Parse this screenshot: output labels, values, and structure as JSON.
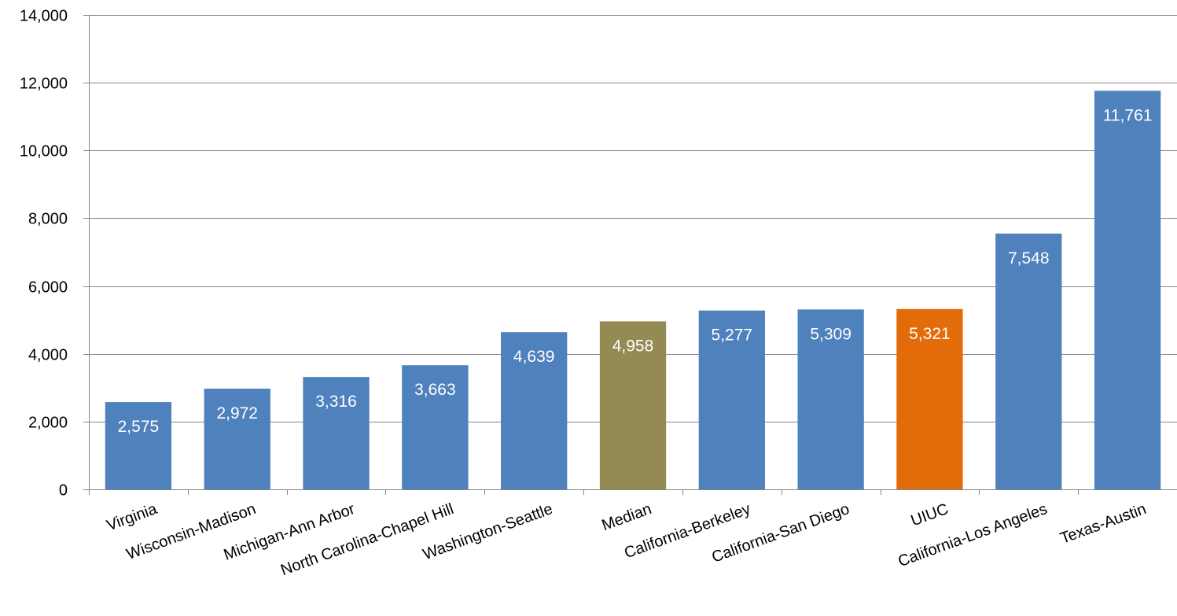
{
  "chart_data": {
    "type": "bar",
    "title": "",
    "xlabel": "",
    "ylabel": "",
    "ylim": [
      0,
      14000
    ],
    "yticks": [
      0,
      2000,
      4000,
      6000,
      8000,
      10000,
      12000,
      14000
    ],
    "ytick_labels": [
      "0",
      "2,000",
      "4,000",
      "6,000",
      "8,000",
      "10,000",
      "12,000",
      "14,000"
    ],
    "grid": true,
    "legend": "none",
    "categories": [
      "Virginia",
      "Wisconsin-Madison",
      "Michigan-Ann Arbor",
      "North Carolina-Chapel Hill",
      "Washington-Seattle",
      "Median",
      "California-Berkeley",
      "California-San Diego",
      "UIUC",
      "California-Los Angeles",
      "Texas-Austin"
    ],
    "values": [
      2575,
      2972,
      3316,
      3663,
      4639,
      4958,
      5277,
      5309,
      5321,
      7548,
      11761
    ],
    "value_labels": [
      "2,575",
      "2,972",
      "3,316",
      "3,663",
      "4,639",
      "4,958",
      "5,277",
      "5,309",
      "5,321",
      "7,548",
      "11,761"
    ],
    "bar_colors": [
      "#4f81bd",
      "#4f81bd",
      "#4f81bd",
      "#4f81bd",
      "#4f81bd",
      "#948a54",
      "#4f81bd",
      "#4f81bd",
      "#e36c0a",
      "#4f81bd",
      "#4f81bd"
    ]
  }
}
